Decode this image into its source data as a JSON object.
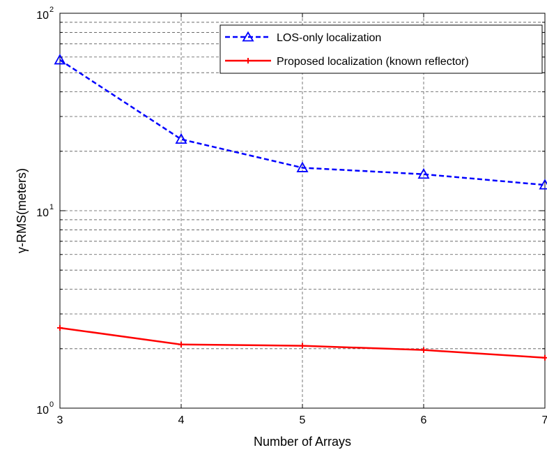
{
  "chart_data": {
    "type": "line",
    "x_scale": "linear",
    "y_scale": "log",
    "xlim": [
      3,
      7
    ],
    "ylim": [
      1,
      100
    ],
    "xticks": [
      3,
      4,
      5,
      6,
      7
    ],
    "xtick_labels": [
      "3",
      "4",
      "5",
      "6",
      "7"
    ],
    "ytick_labels": [
      {
        "base": "10",
        "exp": "0"
      },
      {
        "base": "10",
        "exp": "1"
      },
      {
        "base": "10",
        "exp": "2"
      }
    ],
    "xlabel": "Number of Arrays",
    "ylabel": "γ-RMS(meters)",
    "grid": true,
    "legend_position": "top-right",
    "series": [
      {
        "name": "LOS-only localization",
        "color": "#0000ff",
        "line_style": "dashed",
        "marker": "triangle",
        "x": [
          3,
          4,
          5,
          6,
          7
        ],
        "y": [
          58,
          23,
          16.5,
          15.3,
          13.5
        ]
      },
      {
        "name": "Proposed localization (known reflector)",
        "color": "#ff0000",
        "line_style": "solid",
        "marker": "plus",
        "x": [
          3,
          4,
          5,
          6,
          7
        ],
        "y": [
          2.55,
          2.1,
          2.07,
          1.97,
          1.8
        ]
      }
    ]
  }
}
